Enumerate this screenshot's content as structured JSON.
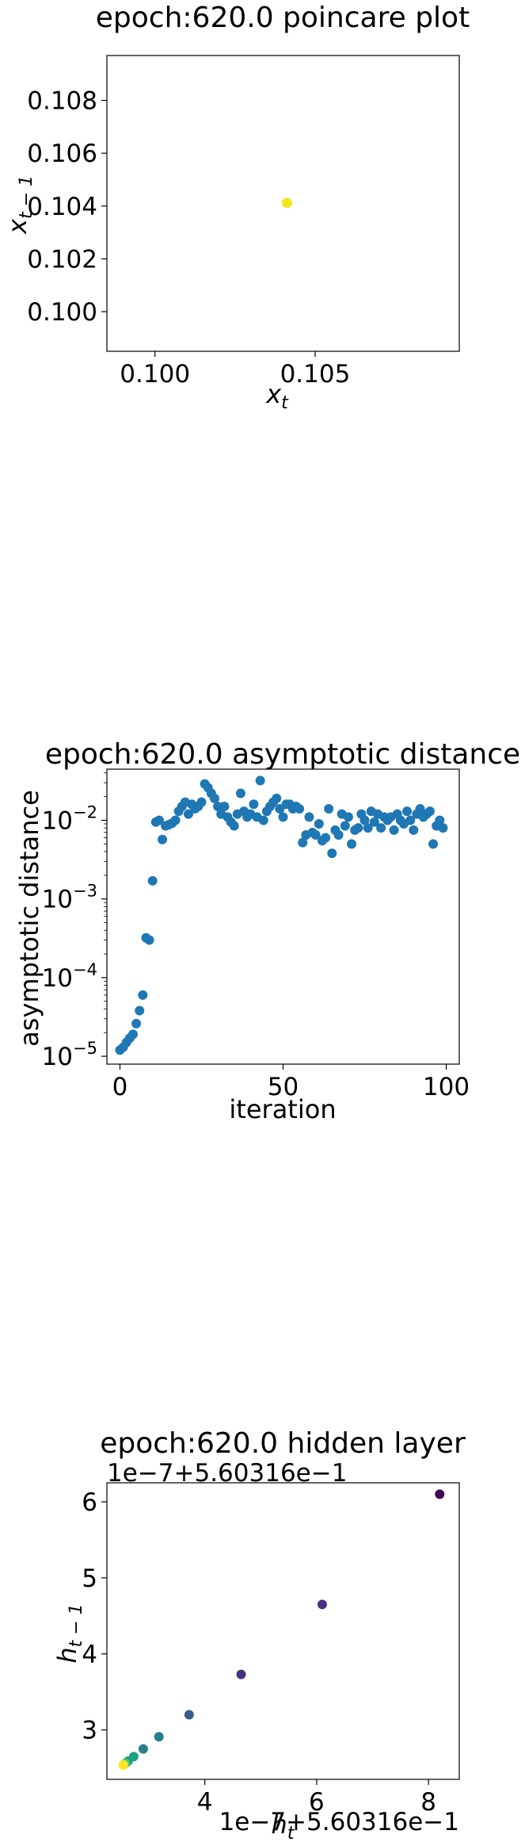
{
  "chart_data": [
    {
      "type": "scatter",
      "title": "epoch:620.0 poincare plot",
      "xlabel": "x",
      "xlabel_sub": "t",
      "ylabel": "x",
      "ylabel_sub": "t − 1",
      "xlim": [
        0.0985,
        0.1095
      ],
      "ylim": [
        0.0985,
        0.1097
      ],
      "xticks": [
        0.1,
        0.105
      ],
      "xtick_labels": [
        "0.100",
        "0.105"
      ],
      "yticks": [
        0.1,
        0.102,
        0.104,
        0.106,
        0.108
      ],
      "ytick_labels": [
        "0.100",
        "0.102",
        "0.104",
        "0.106",
        "0.108"
      ],
      "points": [
        {
          "x": 0.10412,
          "y": 0.10412
        }
      ],
      "point_color": "#f3e51e"
    },
    {
      "type": "scatter",
      "title": "epoch:620.0 asymptotic distance",
      "xlabel": "iteration",
      "ylabel": "asymptotic distance",
      "yscale": "log",
      "xlim": [
        -4,
        104
      ],
      "ylim_exp": [
        -5.1,
        -1.35
      ],
      "xticks": [
        0,
        50,
        100
      ],
      "xtick_labels": [
        "0",
        "50",
        "100"
      ],
      "yticks_exp": [
        -5,
        -4,
        -3,
        -2
      ],
      "ytick_base": "10",
      "ytick_exponents": [
        "−5",
        "−4",
        "−3",
        "−2"
      ],
      "point_color": "#1f77b4",
      "x": [
        0,
        1,
        2,
        3,
        4,
        5,
        6,
        7,
        8,
        9,
        10,
        11,
        12,
        13,
        14,
        15,
        16,
        17,
        18,
        19,
        20,
        21,
        22,
        23,
        24,
        25,
        26,
        27,
        28,
        29,
        30,
        31,
        32,
        33,
        34,
        35,
        36,
        37,
        38,
        39,
        40,
        41,
        42,
        43,
        44,
        45,
        46,
        47,
        48,
        49,
        50,
        51,
        52,
        53,
        54,
        55,
        56,
        57,
        58,
        59,
        60,
        61,
        62,
        63,
        64,
        65,
        66,
        67,
        68,
        69,
        70,
        71,
        72,
        73,
        74,
        75,
        76,
        77,
        78,
        79,
        80,
        81,
        82,
        83,
        84,
        85,
        86,
        87,
        88,
        89,
        90,
        91,
        92,
        93,
        94,
        95,
        96,
        97,
        98,
        99
      ],
      "y": [
        1.2e-05,
        1.3e-05,
        1.5e-05,
        1.7e-05,
        1.9e-05,
        2.6e-05,
        3.8e-05,
        6e-05,
        0.00032,
        0.0003,
        0.0017,
        0.0095,
        0.01,
        0.0057,
        0.0085,
        0.0088,
        0.0092,
        0.01,
        0.013,
        0.015,
        0.017,
        0.012,
        0.016,
        0.014,
        0.015,
        0.017,
        0.029,
        0.026,
        0.022,
        0.019,
        0.015,
        0.012,
        0.015,
        0.011,
        0.0095,
        0.0085,
        0.012,
        0.022,
        0.013,
        0.011,
        0.012,
        0.016,
        0.011,
        0.032,
        0.01,
        0.013,
        0.015,
        0.017,
        0.019,
        0.014,
        0.011,
        0.016,
        0.016,
        0.014,
        0.015,
        0.014,
        0.0052,
        0.0065,
        0.011,
        0.007,
        0.0065,
        0.009,
        0.0055,
        0.006,
        0.014,
        0.0038,
        0.0075,
        0.0065,
        0.012,
        0.0085,
        0.011,
        0.005,
        0.0075,
        0.008,
        0.012,
        0.01,
        0.008,
        0.013,
        0.0095,
        0.012,
        0.008,
        0.011,
        0.01,
        0.011,
        0.0075,
        0.012,
        0.01,
        0.009,
        0.013,
        0.01,
        0.0075,
        0.012,
        0.014,
        0.011,
        0.012,
        0.013,
        0.005,
        0.0085,
        0.01,
        0.008
      ]
    },
    {
      "type": "scatter",
      "title": "epoch:620.0 hidden layer",
      "xlabel": "h",
      "xlabel_sub": "t",
      "ylabel": "h",
      "ylabel_sub": "t − 1",
      "x_offset_text": "1e−7+5.60316e−1",
      "y_offset_text": "1e−7+5.60316e−1",
      "xlim": [
        2.25,
        8.55
      ],
      "ylim": [
        2.35,
        6.25
      ],
      "xticks": [
        4,
        6,
        8
      ],
      "xtick_labels": [
        "4",
        "6",
        "8"
      ],
      "yticks": [
        3,
        4,
        5,
        6
      ],
      "ytick_labels": [
        "3",
        "4",
        "5",
        "6"
      ],
      "colormap": [
        "#440154",
        "#46327e",
        "#365c8d",
        "#277f8e",
        "#1fa187",
        "#4ac16d",
        "#a0da39",
        "#fde725"
      ],
      "points": [
        {
          "x": 8.2,
          "y": 6.1
        },
        {
          "x": 6.1,
          "y": 4.65
        },
        {
          "x": 4.65,
          "y": 3.73
        },
        {
          "x": 3.72,
          "y": 3.2
        },
        {
          "x": 3.18,
          "y": 2.91
        },
        {
          "x": 2.9,
          "y": 2.75
        },
        {
          "x": 2.73,
          "y": 2.65
        },
        {
          "x": 2.63,
          "y": 2.59
        },
        {
          "x": 2.58,
          "y": 2.56
        },
        {
          "x": 2.55,
          "y": 2.545
        },
        {
          "x": 2.545,
          "y": 2.54
        },
        {
          "x": 2.54,
          "y": 2.537
        }
      ]
    }
  ]
}
